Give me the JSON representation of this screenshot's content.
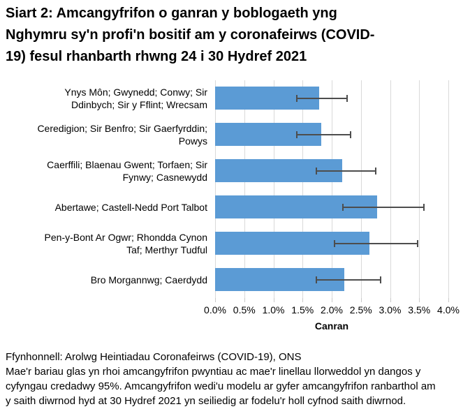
{
  "title_display": "Siart 2: Amcangyfrifon o ganran y boblogaeth yng\nNghymru sy'n profi'n bositif am y coronafeirws (COVID-\n19) fesul rhanbarth rhwng 24 i 30 Hydref 2021",
  "source_line": "Ffynhonnell: Arolwg Heintiadau Coronafeirws (COVID-19), ONS",
  "note_display": "Mae'r bariau glas yn rhoi amcangyfrifon pwyntiau ac mae'r linellau llorweddol yn dangos y\ncyfyngau credadwy 95%. Amcangyfrifon wedi'u modelu ar gyfer amcangyfrifon ranbarthol am\ny saith diwrnod hyd at 30 Hydref 2021 yn seiliedig ar fodelu'r holl cyfnod saith diwrnod.",
  "colors": {
    "bar": "#5B9BD5",
    "gridline": "#D9D9D9",
    "tick": "#C9C9C9",
    "error_bar": "#4D4D4D",
    "text": "#000000"
  },
  "chart_data": {
    "type": "bar",
    "orientation": "horizontal",
    "title": "Siart 2: Amcangyfrifon o ganran y boblogaeth yng Nghymru sy'n profi'n bositif am y coronafeirws (COVID-19) fesul rhanbarth rhwng 24 i 30 Hydref 2021",
    "categories": [
      "Ynys Môn; Gwynedd; Conwy; Sir\nDdinbych; Sir y Fflint; Wrecsam",
      "Ceredigion; Sir Benfro; Sir Gaerfyrddin;\nPowys",
      "Caerffili; Blaenau Gwent; Torfaen; Sir\nFynwy; Casnewydd",
      "Abertawe; Castell-Nedd Port Talbot",
      "Pen-y-Bont Ar Ogwr; Rhondda Cynon\nTaf; Merthyr Tudful",
      "Bro Morgannwg; Caerdydd"
    ],
    "values": [
      1.78,
      1.82,
      2.18,
      2.78,
      2.65,
      2.22
    ],
    "error_bars_95ci": {
      "low": [
        1.39,
        1.39,
        1.72,
        2.18,
        2.03,
        1.72
      ],
      "high": [
        2.28,
        2.34,
        2.77,
        3.59,
        3.49,
        2.85
      ]
    },
    "xlabel": "Canran",
    "xlim": [
      0,
      4
    ],
    "ticks": [
      0,
      0.5,
      1,
      1.5,
      2,
      2.5,
      3,
      3.5,
      4
    ],
    "tick_labels": [
      "0.0%",
      "0.5%",
      "1.0%",
      "1.5%",
      "2.0%",
      "2.5%",
      "3.0%",
      "3.5%",
      "4.0%"
    ],
    "grid": true,
    "legend": false,
    "units": "percent"
  }
}
